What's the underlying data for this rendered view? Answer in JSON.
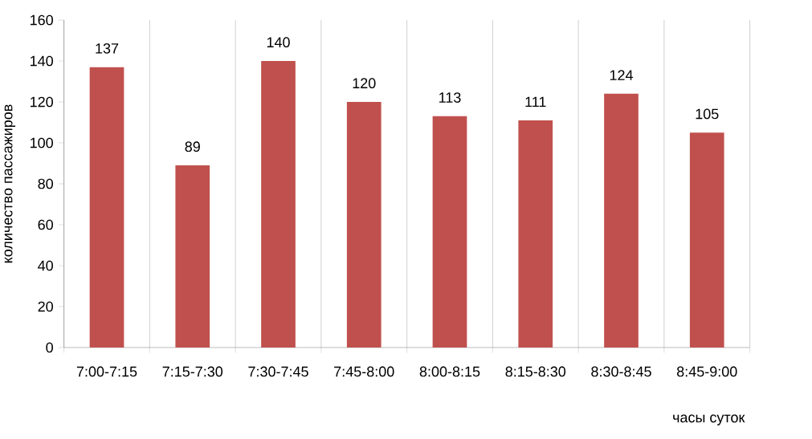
{
  "chart_data": {
    "type": "bar",
    "xlabel": "часы суток",
    "ylabel": "количество пассажиров",
    "categories": [
      "7:00-7:15",
      "7:15-7:30",
      "7:30-7:45",
      "7:45-8:00",
      "8:00-8:15",
      "8:15-8:30",
      "8:30-8:45",
      "8:45-9:00"
    ],
    "values": [
      137,
      89,
      140,
      120,
      113,
      111,
      124,
      105
    ],
    "color": "#c0504d",
    "ylim": [
      0,
      160
    ],
    "yticks": [
      0,
      20,
      40,
      60,
      80,
      100,
      120,
      140,
      160
    ],
    "grid": "x",
    "data_labels": true
  }
}
